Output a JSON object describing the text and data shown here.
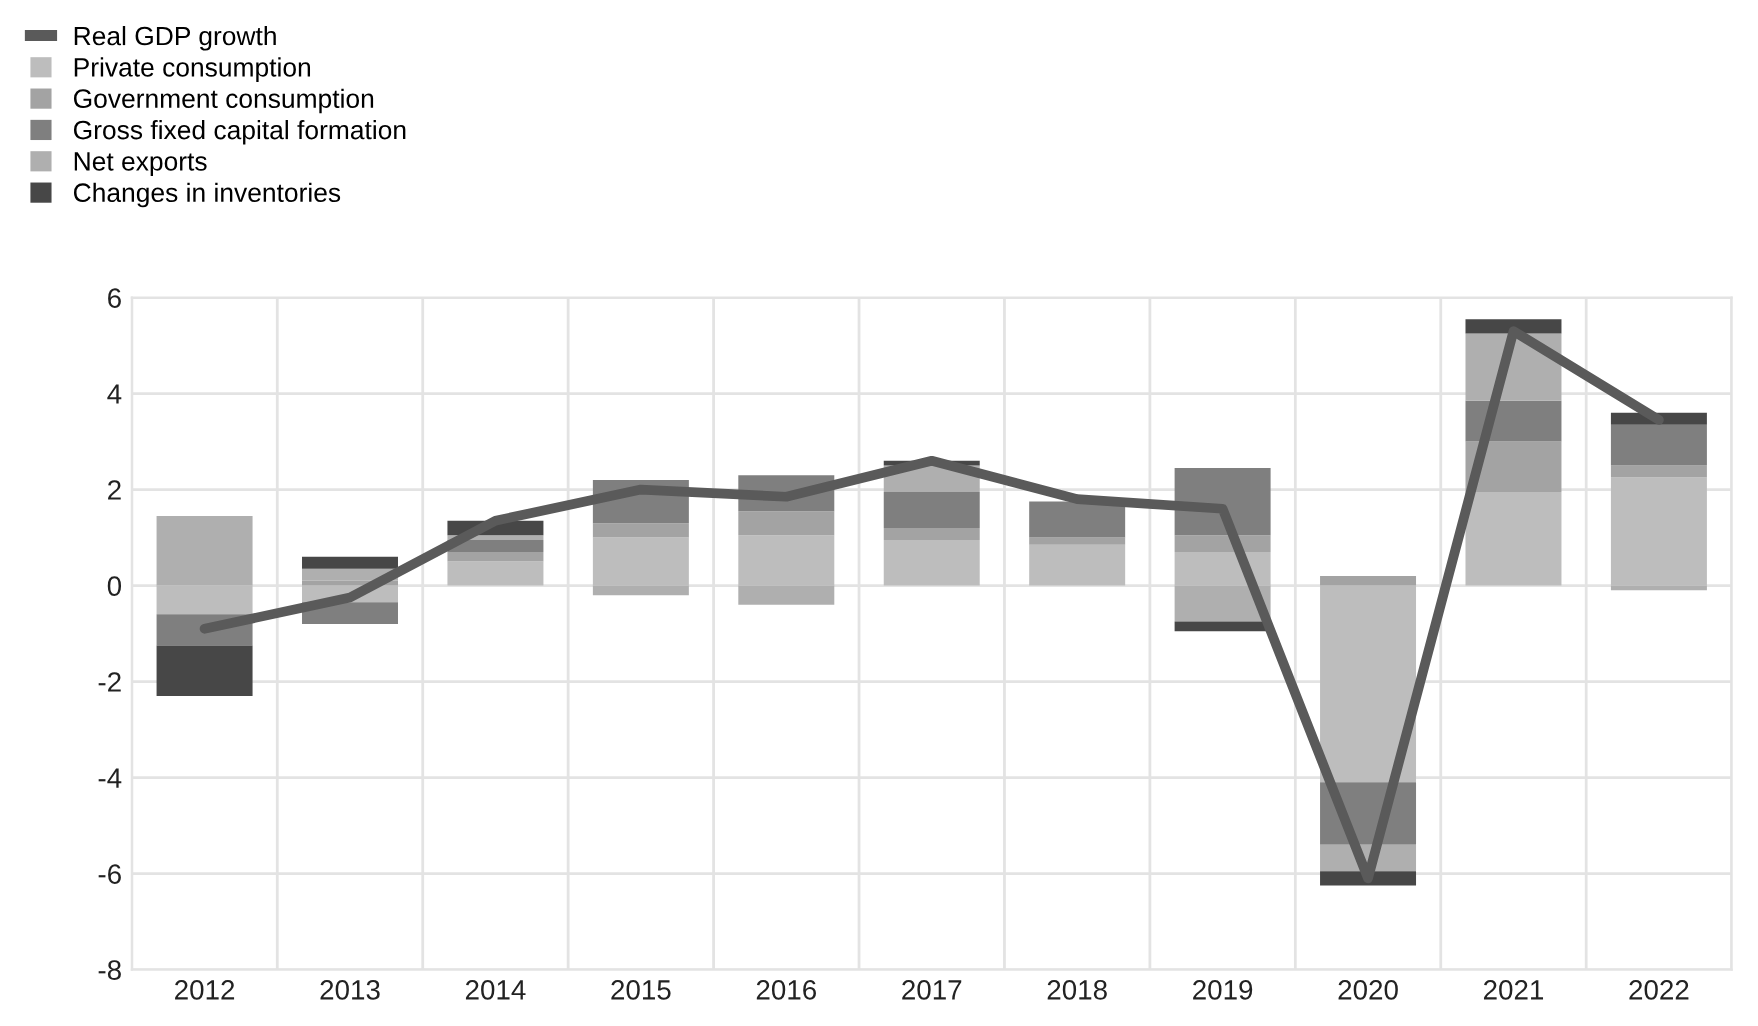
{
  "chart_data": {
    "type": "bar",
    "stacked": true,
    "categories": [
      "2012",
      "2013",
      "2014",
      "2015",
      "2016",
      "2017",
      "2018",
      "2019",
      "2020",
      "2021",
      "2022"
    ],
    "series": [
      {
        "name": "Real GDP growth",
        "type": "line",
        "color": "#5a5a5a",
        "values": [
          -0.9,
          -0.25,
          1.35,
          2.0,
          1.85,
          2.6,
          1.8,
          1.6,
          -6.1,
          5.3,
          3.45
        ]
      },
      {
        "name": "Private consumption",
        "color": "#bdbdbd",
        "values": [
          -0.6,
          -0.35,
          0.5,
          1.0,
          1.05,
          0.95,
          0.85,
          0.7,
          -4.1,
          1.95,
          2.25
        ]
      },
      {
        "name": "Government consumption",
        "color": "#a3a3a3",
        "values": [
          0.0,
          0.1,
          0.2,
          0.3,
          0.5,
          0.25,
          0.15,
          0.35,
          0.2,
          1.05,
          0.25
        ]
      },
      {
        "name": "Gross fixed capital formation",
        "color": "#7f7f7f",
        "values": [
          -0.65,
          -0.45,
          0.25,
          0.9,
          0.75,
          0.75,
          0.75,
          1.4,
          -1.3,
          0.85,
          0.85
        ]
      },
      {
        "name": "Net exports",
        "color": "#afafaf",
        "values": [
          1.45,
          0.25,
          0.1,
          -0.2,
          -0.4,
          0.55,
          0.0,
          -0.75,
          -0.55,
          1.4,
          -0.1
        ]
      },
      {
        "name": "Changes in inventories",
        "color": "#474747",
        "values": [
          -1.05,
          0.25,
          0.3,
          0.0,
          0.0,
          0.1,
          0.0,
          -0.2,
          -0.3,
          0.3,
          0.25
        ]
      }
    ],
    "ylim": [
      -8,
      6
    ],
    "yticks": [
      -8,
      -6,
      -4,
      -2,
      0,
      2,
      4,
      6
    ],
    "grid": true,
    "legend": "top left"
  }
}
